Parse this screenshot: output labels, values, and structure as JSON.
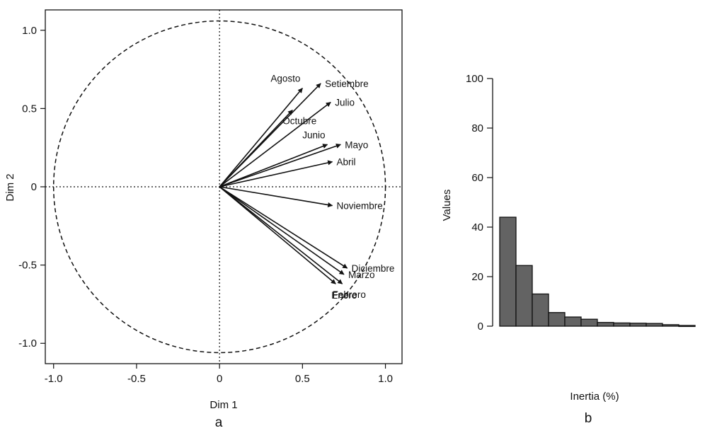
{
  "chart_data": [
    {
      "type": "scatter",
      "subtype": "pca-correlation-circle",
      "panel_label": "a",
      "xlabel": "Dim 1",
      "ylabel": "Dim 2",
      "xlim": [
        -1.05,
        1.1
      ],
      "ylim": [
        -1.13,
        1.13
      ],
      "xticks": [
        -1.0,
        -0.5,
        0,
        0.5,
        1.0
      ],
      "xtick_labels": [
        "-1.0",
        "-0.5",
        "0",
        "0.5",
        "1.0"
      ],
      "yticks": [
        -1.0,
        -0.5,
        0,
        0.5,
        1.0
      ],
      "ytick_labels": [
        "-1.0",
        "-0.5",
        "0",
        "0.5",
        "1.0"
      ],
      "circle_radius": 1.0,
      "variables": [
        {
          "name": "Agosto",
          "x": 0.5,
          "y": 0.63,
          "label_anchor": "above-left"
        },
        {
          "name": "Setiembre",
          "x": 0.61,
          "y": 0.66,
          "label_anchor": "right"
        },
        {
          "name": "Octubre",
          "x": 0.44,
          "y": 0.49,
          "label_anchor": "below-right"
        },
        {
          "name": "Julio",
          "x": 0.67,
          "y": 0.54,
          "label_anchor": "right"
        },
        {
          "name": "Junio",
          "x": 0.65,
          "y": 0.27,
          "label_anchor": "above-left"
        },
        {
          "name": "Mayo",
          "x": 0.73,
          "y": 0.27,
          "label_anchor": "right"
        },
        {
          "name": "Abril",
          "x": 0.68,
          "y": 0.16,
          "label_anchor": "right"
        },
        {
          "name": "Noviembre",
          "x": 0.68,
          "y": -0.12,
          "label_anchor": "right"
        },
        {
          "name": "Diciembre",
          "x": 0.77,
          "y": -0.52,
          "label_anchor": "right"
        },
        {
          "name": "Marzo",
          "x": 0.75,
          "y": -0.56,
          "label_anchor": "right"
        },
        {
          "name": "Febrero",
          "x": 0.74,
          "y": -0.62,
          "label_anchor": "below-right"
        },
        {
          "name": "Enero",
          "x": 0.7,
          "y": -0.62,
          "label_anchor": "below"
        }
      ]
    },
    {
      "type": "bar",
      "panel_label": "b",
      "title": "",
      "xlabel": "Inertia (%)",
      "ylabel": "Values",
      "ylim": [
        0,
        100
      ],
      "yticks": [
        0,
        20,
        40,
        60,
        80,
        100
      ],
      "ytick_labels": [
        "0",
        "20",
        "40",
        "60",
        "80",
        "100"
      ],
      "values": [
        44,
        24.5,
        13,
        5.5,
        3.7,
        2.8,
        1.5,
        1.3,
        1.2,
        1.1,
        0.6,
        0.3
      ]
    }
  ]
}
